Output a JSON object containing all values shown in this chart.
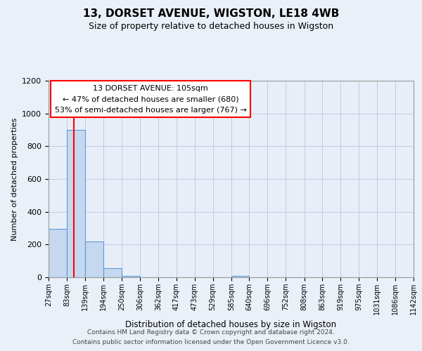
{
  "title": "13, DORSET AVENUE, WIGSTON, LE18 4WB",
  "subtitle": "Size of property relative to detached houses in Wigston",
  "xlabel": "Distribution of detached houses by size in Wigston",
  "ylabel": "Number of detached properties",
  "bin_edges": [
    27,
    83,
    139,
    194,
    250,
    306,
    362,
    417,
    473,
    529,
    585,
    640,
    696,
    752,
    808,
    863,
    919,
    975,
    1031,
    1086,
    1142
  ],
  "bin_labels": [
    "27sqm",
    "83sqm",
    "139sqm",
    "194sqm",
    "250sqm",
    "306sqm",
    "362sqm",
    "417sqm",
    "473sqm",
    "529sqm",
    "585sqm",
    "640sqm",
    "696sqm",
    "752sqm",
    "808sqm",
    "863sqm",
    "919sqm",
    "975sqm",
    "1031sqm",
    "1086sqm",
    "1142sqm"
  ],
  "counts": [
    295,
    900,
    220,
    55,
    10,
    0,
    0,
    0,
    0,
    0,
    10,
    0,
    0,
    0,
    0,
    0,
    0,
    0,
    0,
    0
  ],
  "bar_color": "#c5d8f0",
  "bar_edge_color": "#5b9bd5",
  "red_line_x": 105,
  "annotation_line1": "13 DORSET AVENUE: 105sqm",
  "annotation_line2": "← 47% of detached houses are smaller (680)",
  "annotation_line3": "53% of semi-detached houses are larger (767) →",
  "ylim": [
    0,
    1200
  ],
  "yticks": [
    0,
    200,
    400,
    600,
    800,
    1000,
    1200
  ],
  "footer_line1": "Contains HM Land Registry data © Crown copyright and database right 2024.",
  "footer_line2": "Contains public sector information licensed under the Open Government Licence v3.0.",
  "background_color": "#eaf0f8",
  "plot_bg_color": "#e8eef8",
  "grid_color": "#b8c8dc"
}
